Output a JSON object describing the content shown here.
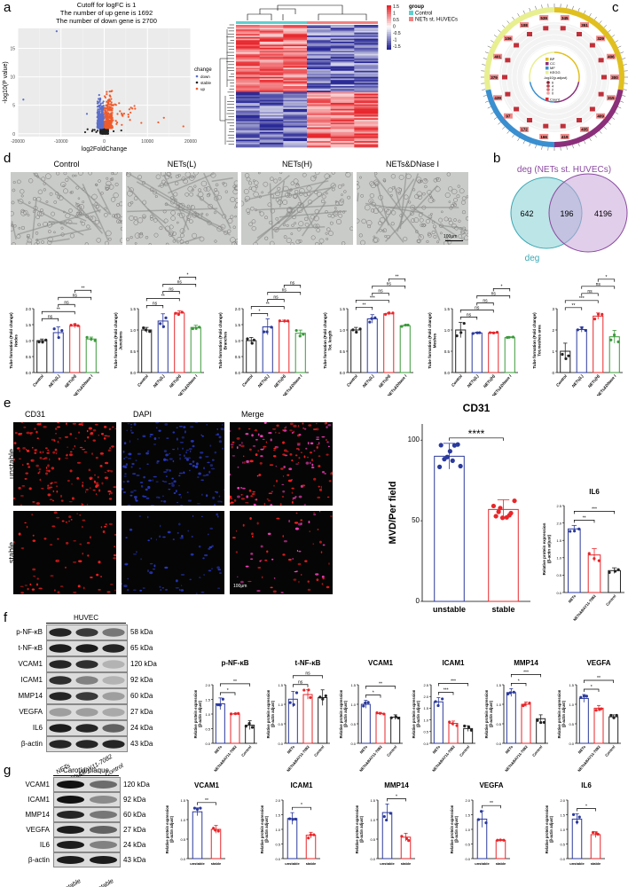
{
  "panels": {
    "a": "a",
    "b": "b",
    "c": "c",
    "d": "d",
    "e": "e",
    "f": "f",
    "g": "g"
  },
  "volcano": {
    "title": [
      "Cutoff for logFC is 1",
      "The number of up gene is 1692",
      "The number of down gene is 2700"
    ],
    "xlabel": "log2FoldChange",
    "ylabel": "-log10(P value)",
    "xticks": [
      "-20000",
      "-10000",
      "0",
      "10000",
      "20000"
    ],
    "yticks": [
      "0",
      "5",
      "10",
      "15"
    ],
    "xlim": [
      -20000,
      20000
    ],
    "ylim": [
      -0.5,
      18.5
    ],
    "legend_title": "change",
    "legend": [
      {
        "label": "down",
        "color": "#5b6ec9"
      },
      {
        "label": "stable",
        "color": "#222222"
      },
      {
        "label": "up",
        "color": "#ef5b2c"
      }
    ]
  },
  "heatmap": {
    "legend_ticks": [
      "1.5",
      "1",
      "0.5",
      "0",
      "-0.5",
      "-1",
      "-1.5"
    ],
    "legend_title": "group",
    "groups": [
      {
        "label": "Control",
        "color": "#5fcfcf"
      },
      {
        "label": "NETs st. HUVECs",
        "color": "#f08080"
      }
    ]
  },
  "circle": {
    "legend": [
      {
        "label": "BP",
        "color": "#e0c020"
      },
      {
        "label": "CC",
        "color": "#8b2f7a"
      },
      {
        "label": "MF",
        "color": "#3a8fd0"
      },
      {
        "label": "KEGG",
        "color": "#e8ef90"
      }
    ],
    "scale_title": "-log10(p.adjust)",
    "scale_ticks": [
      "6",
      "4",
      "2",
      "0"
    ],
    "count_label": "Count",
    "counts": [
      "345",
      "351",
      "329",
      "406",
      "300",
      "315",
      "409",
      "435",
      "419",
      "166",
      "172",
      "97",
      "439",
      "379",
      "401",
      "106",
      "108",
      "539"
    ]
  },
  "venn": {
    "title": "deg (NETs st. HUVECs)",
    "label": "deg",
    "left": "642",
    "overlap": "196",
    "right": "4196"
  },
  "micro": {
    "titles": [
      "Control",
      "NETs(L)",
      "NETs(H)",
      "NETs&DNase I"
    ],
    "scale_bar": "100μm"
  },
  "colors": {
    "control": "#222222",
    "netsL": "#2b3a9c",
    "netsH": "#e8262a",
    "dnase": "#3a9a3a",
    "unstable": "#2b3a9c",
    "stable": "#e8262a"
  },
  "tube_charts": [
    {
      "name": "nodes",
      "categories": [
        "Control",
        "NETs(L)",
        "NETs(H)",
        "NETs&DNase I"
      ],
      "ylabel": [
        "Tube formation (Fold change)",
        "Nodes"
      ],
      "values": [
        1.0,
        1.25,
        1.46,
        1.05
      ],
      "errors": [
        0.05,
        0.18,
        0.06,
        0.06
      ],
      "ylim": [
        0,
        2
      ],
      "ticks": [
        "0.0",
        "0.5",
        "1.0",
        "1.5",
        "2.0"
      ],
      "sig": [
        [
          0,
          1,
          "ns"
        ],
        [
          0,
          2,
          "**"
        ],
        [
          1,
          2,
          "ns"
        ],
        [
          1,
          3,
          "ns"
        ],
        [
          2,
          3,
          "**"
        ]
      ]
    },
    {
      "name": "junctions",
      "categories": [
        "Control",
        "NETs(L)",
        "NETs(H)",
        "NETs&DNase I"
      ],
      "ylabel": [
        "Tube formation (Fold change)",
        "Junctions"
      ],
      "values": [
        1.0,
        1.21,
        1.4,
        1.06
      ],
      "errors": [
        0.06,
        0.17,
        0.05,
        0.05
      ],
      "ylim": [
        0,
        1.5
      ],
      "ticks": [
        "0.0",
        "0.5",
        "1.0",
        "1.5"
      ],
      "sig": [
        [
          0,
          1,
          "ns"
        ],
        [
          0,
          2,
          "**"
        ],
        [
          1,
          2,
          "ns"
        ],
        [
          1,
          3,
          "ns"
        ],
        [
          2,
          3,
          "*"
        ]
      ]
    },
    {
      "name": "branches",
      "categories": [
        "Control",
        "NETs(L)",
        "NETs(H)",
        "NETs&DNase I"
      ],
      "ylabel": [
        "Tube formation (Fold change)",
        "Branches"
      ],
      "values": [
        1.0,
        1.43,
        1.6,
        1.23
      ],
      "errors": [
        0.1,
        0.25,
        0.04,
        0.1
      ],
      "ylim": [
        0,
        2
      ],
      "ticks": [
        "0.0",
        "0.5",
        "1.0",
        "1.5",
        "2.0"
      ],
      "sig": [
        [
          0,
          1,
          "*"
        ],
        [
          0,
          2,
          "**"
        ],
        [
          1,
          2,
          "ns"
        ],
        [
          1,
          3,
          "ns"
        ],
        [
          2,
          3,
          "ns"
        ]
      ]
    },
    {
      "name": "tot-length",
      "categories": [
        "Control",
        "NETs(L)",
        "NETs(H)",
        "NETs&DNase I"
      ],
      "ylabel": [
        "Tube formation (Fold change)",
        "Tot. length"
      ],
      "values": [
        1.0,
        1.26,
        1.38,
        1.1
      ],
      "errors": [
        0.06,
        0.1,
        0.03,
        0.02
      ],
      "ylim": [
        0,
        1.5
      ],
      "ticks": [
        "0.0",
        "0.5",
        "1.0",
        "1.5"
      ],
      "sig": [
        [
          0,
          1,
          "**"
        ],
        [
          0,
          2,
          "***"
        ],
        [
          1,
          2,
          "ns"
        ],
        [
          1,
          3,
          "ns"
        ],
        [
          2,
          3,
          "**"
        ]
      ]
    },
    {
      "name": "meshes",
      "categories": [
        "Control",
        "NETs(L)",
        "NETs(H)",
        "NETs&DNase I"
      ],
      "ylabel": [
        "Tube formation (Fold change)",
        "Meshes"
      ],
      "values": [
        1.0,
        0.93,
        0.93,
        0.82
      ],
      "errors": [
        0.18,
        0.02,
        0.02,
        0.02
      ],
      "ylim": [
        0,
        1.5
      ],
      "ticks": [
        "0.0",
        "0.5",
        "1.0",
        "1.5"
      ],
      "sig": [
        [
          0,
          1,
          "ns"
        ],
        [
          0,
          2,
          "ns"
        ],
        [
          1,
          2,
          "ns"
        ],
        [
          1,
          3,
          "ns"
        ],
        [
          2,
          3,
          "*"
        ]
      ]
    },
    {
      "name": "tot-meshes-area",
      "categories": [
        "Control",
        "NETs(L)",
        "NETs(H)",
        "NETs&DNase I"
      ],
      "ylabel": [
        "Tube formation (Fold change)",
        "Tot.meshes area"
      ],
      "values": [
        1.0,
        2.02,
        2.65,
        1.68
      ],
      "errors": [
        0.38,
        0.12,
        0.15,
        0.3
      ],
      "ylim": [
        0,
        3
      ],
      "ticks": [
        "0",
        "1",
        "2",
        "3"
      ],
      "sig": [
        [
          0,
          1,
          "**"
        ],
        [
          0,
          2,
          "***"
        ],
        [
          1,
          2,
          "ns"
        ],
        [
          1,
          3,
          "ns"
        ],
        [
          2,
          3,
          "*"
        ]
      ]
    }
  ],
  "if_panel": {
    "columns": [
      "CD31",
      "DAPI",
      "Merge"
    ],
    "rows": [
      "unstable",
      "stable"
    ],
    "scale_bar": "100μm"
  },
  "cd31_chart": {
    "title": "CD31",
    "categories": [
      "unstable",
      "stable"
    ],
    "ylabel": [
      "MVD/Per field"
    ],
    "values": [
      90,
      57
    ],
    "errors": [
      8,
      6
    ],
    "ylim": [
      0,
      110
    ],
    "ticks": [
      "0",
      "50",
      "100"
    ],
    "sig": [
      [
        0,
        1,
        "****"
      ]
    ]
  },
  "il6_e_chart": {
    "title": "IL6",
    "categories": [
      "NETs",
      "NETs&BAY11-7082",
      "Control"
    ],
    "ylabel": [
      "Relative protein expression",
      "(β-actin adjust)"
    ],
    "values": [
      1.83,
      1.08,
      0.63
    ],
    "errors": [
      0.1,
      0.18,
      0.08
    ],
    "ylim": [
      0,
      2.5
    ],
    "ticks": [
      "0.0",
      "0.5",
      "1.0",
      "1.5",
      "2.0",
      "2.5"
    ],
    "sig": [
      [
        0,
        1,
        "**"
      ],
      [
        0,
        2,
        "***"
      ]
    ]
  },
  "blot_f": {
    "header": "HUVEC",
    "rows": [
      {
        "label": "p-NF-κB",
        "kda": "58 kDa"
      },
      {
        "label": "t-NF-κB",
        "kda": "65 kDa"
      },
      {
        "label": "VCAM1",
        "kda": "120 kDa"
      },
      {
        "label": "ICAM1",
        "kda": "92 kDa"
      },
      {
        "label": "MMP14",
        "kda": "60 kDa"
      },
      {
        "label": "VEGFA",
        "kda": "27 kDa"
      },
      {
        "label": "IL6",
        "kda": "24 kDa"
      },
      {
        "label": "β-actin",
        "kda": "43 kDa"
      }
    ],
    "lanes": [
      "NETs",
      "NETs&BAY11-7082",
      "Control"
    ]
  },
  "f_charts": [
    {
      "title": "p-NF-κB",
      "categories": [
        "NETs",
        "NETs&BAY11-7082",
        "Control"
      ],
      "ylabel": [
        "Relative protein expression",
        "(β-actin adjust)"
      ],
      "values": [
        1.35,
        1.0,
        0.62
      ],
      "errors": [
        0.2,
        0.02,
        0.15
      ],
      "ylim": [
        0,
        2
      ],
      "ticks": [
        "0.0",
        "0.5",
        "1.0",
        "1.5",
        "2.0"
      ],
      "sig": [
        [
          0,
          1,
          "*"
        ],
        [
          0,
          2,
          "**"
        ]
      ]
    },
    {
      "title": "t-NF-κB",
      "categories": [
        "NETs",
        "NETs&BAY11-7082",
        "Control"
      ],
      "ylabel": [
        "Relative protein expression",
        "(β-actin adjust)"
      ],
      "values": [
        1.13,
        1.25,
        1.17
      ],
      "errors": [
        0.2,
        0.12,
        0.2
      ],
      "ylim": [
        0,
        1.5
      ],
      "ticks": [
        "0.0",
        "0.5",
        "1.0",
        "1.5"
      ],
      "sig": [
        [
          0,
          1,
          "ns"
        ],
        [
          0,
          2,
          "ns"
        ]
      ]
    },
    {
      "title": "VCAM1",
      "categories": [
        "NETs",
        "NETs&BAY11-7082",
        "Control"
      ],
      "ylabel": [
        "Relative protein expression",
        "(β-actin adjust)"
      ],
      "values": [
        1.0,
        0.76,
        0.67
      ],
      "errors": [
        0.1,
        0.03,
        0.06
      ],
      "ylim": [
        0,
        1.5
      ],
      "ticks": [
        "0.0",
        "0.5",
        "1.0",
        "1.5"
      ],
      "sig": [
        [
          0,
          1,
          "*"
        ],
        [
          0,
          2,
          "**"
        ]
      ]
    },
    {
      "title": "ICAM1",
      "categories": [
        "NETs",
        "NETs&BAY11-7082",
        "Control"
      ],
      "ylabel": [
        "Relative protein expression",
        "(β-actin adjust)"
      ],
      "values": [
        1.77,
        0.85,
        0.63
      ],
      "errors": [
        0.18,
        0.1,
        0.12
      ],
      "ylim": [
        0,
        2.5
      ],
      "ticks": [
        "0.0",
        "0.5",
        "1.0",
        "1.5",
        "2.0",
        "2.5"
      ],
      "sig": [
        [
          0,
          1,
          "***"
        ],
        [
          0,
          2,
          "***"
        ]
      ]
    },
    {
      "title": "MMP14",
      "categories": [
        "NETs",
        "NETs&BAY11-7082",
        "Control"
      ],
      "ylabel": [
        "Relative protein expression",
        "(β-actin adjust)"
      ],
      "values": [
        1.3,
        1.0,
        0.63
      ],
      "errors": [
        0.1,
        0.06,
        0.1
      ],
      "ylim": [
        0,
        1.5
      ],
      "ticks": [
        "0.0",
        "0.5",
        "1.0",
        "1.5"
      ],
      "sig": [
        [
          0,
          1,
          "*"
        ],
        [
          0,
          2,
          "***"
        ]
      ]
    },
    {
      "title": "VEGFA",
      "categories": [
        "NETs",
        "NETs&BAY11-7082",
        "Control"
      ],
      "ylabel": [
        "Relative protein expression",
        "(β-actin adjust)"
      ],
      "values": [
        1.15,
        0.9,
        0.68
      ],
      "errors": [
        0.1,
        0.07,
        0.05
      ],
      "ylim": [
        0,
        1.5
      ],
      "ticks": [
        "0.0",
        "0.5",
        "1.0",
        "1.5"
      ],
      "sig": [
        [
          0,
          1,
          "*"
        ],
        [
          0,
          2,
          "**"
        ]
      ]
    }
  ],
  "blot_g": {
    "header": "Carotid plaque",
    "rows": [
      {
        "label": "VCAM1",
        "kda": "120 kDa"
      },
      {
        "label": "ICAM1",
        "kda": "92 kDa"
      },
      {
        "label": "MMP14",
        "kda": "60 kDa"
      },
      {
        "label": "VEGFA",
        "kda": "27 kDa"
      },
      {
        "label": "IL6",
        "kda": "24 kDa"
      },
      {
        "label": "β-actin",
        "kda": "43 kDa"
      }
    ],
    "lanes": [
      "unstable",
      "stable"
    ]
  },
  "g_charts": [
    {
      "title": "VCAM1",
      "categories": [
        "unstable",
        "stable"
      ],
      "ylabel": [
        "Relative protein expression",
        "(β-actin adjust)"
      ],
      "values": [
        1.2,
        0.75
      ],
      "errors": [
        0.1,
        0.1
      ],
      "ylim": [
        0,
        1.5
      ],
      "ticks": [
        "0.0",
        "0.5",
        "1.0",
        "1.5"
      ],
      "sig": [
        [
          0,
          1,
          "**"
        ]
      ]
    },
    {
      "title": "ICAM1",
      "categories": [
        "unstable",
        "stable"
      ],
      "ylabel": [
        "Relative protein expression",
        "(β-actin adjust)"
      ],
      "values": [
        1.37,
        0.8
      ],
      "errors": [
        0.2,
        0.1
      ],
      "ylim": [
        0,
        2
      ],
      "ticks": [
        "0.0",
        "0.5",
        "1.0",
        "1.5",
        "2.0"
      ],
      "sig": [
        [
          0,
          1,
          "*"
        ]
      ]
    },
    {
      "title": "MMP14",
      "categories": [
        "unstable",
        "stable"
      ],
      "ylabel": [
        "Relative protein expression",
        "(β-actin adjust)"
      ],
      "values": [
        1.18,
        0.55
      ],
      "errors": [
        0.22,
        0.1
      ],
      "ylim": [
        0,
        1.5
      ],
      "ticks": [
        "0.0",
        "0.5",
        "1.0",
        "1.5"
      ],
      "sig": [
        [
          0,
          1,
          "*"
        ]
      ]
    },
    {
      "title": "VEGFA",
      "categories": [
        "unstable",
        "stable"
      ],
      "ylabel": [
        "Relative protein expression",
        "(β-actin adjust)"
      ],
      "values": [
        1.35,
        0.62
      ],
      "errors": [
        0.28,
        0.03
      ],
      "ylim": [
        0,
        2
      ],
      "ticks": [
        "0.0",
        "0.5",
        "1.0",
        "1.5",
        "2.0"
      ],
      "sig": [
        [
          0,
          1,
          "**"
        ]
      ]
    },
    {
      "title": "IL6",
      "categories": [
        "unstable",
        "stable"
      ],
      "ylabel": [
        "Relative protein expression",
        "(β-actin adjust)"
      ],
      "values": [
        1.35,
        0.82
      ],
      "errors": [
        0.18,
        0.1
      ],
      "ylim": [
        0,
        2
      ],
      "ticks": [
        "0.0",
        "0.5",
        "1.0",
        "1.5",
        "2.0"
      ],
      "sig": [
        [
          0,
          1,
          "*"
        ]
      ]
    }
  ]
}
